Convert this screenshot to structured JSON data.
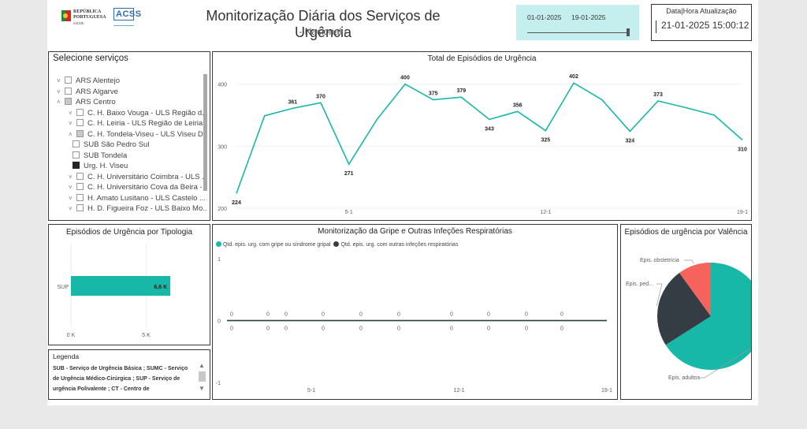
{
  "header": {
    "logo_republica_line1": "REPÚBLICA",
    "logo_republica_line2": "PORTUGUESA",
    "logo_republica_sub": "SAÚDE",
    "logo_acss": "ACSS",
    "title": "Monitorização Diária dos Serviços de Urgência",
    "subtitle": "- Nacional -",
    "date_start": "01-01-2025",
    "date_end": "19-01-2025",
    "update_label": "Data|Hora Atualização",
    "update_value": "21-01-2025 15:00:12"
  },
  "slicer": {
    "title": "Selecione serviços",
    "items": [
      {
        "label": "ARS Alentejo",
        "level": 0,
        "chevron": "down",
        "state": "unchecked"
      },
      {
        "label": "ARS Algarve",
        "level": 0,
        "chevron": "down",
        "state": "unchecked"
      },
      {
        "label": "ARS Centro",
        "level": 0,
        "chevron": "up",
        "state": "partial"
      },
      {
        "label": "C. H. Baixo Vouga - ULS Região d...",
        "level": 1,
        "chevron": "down",
        "state": "unchecked"
      },
      {
        "label": "C. H. Leiria - ULS Região de Leiria,...",
        "level": 1,
        "chevron": "down",
        "state": "unchecked"
      },
      {
        "label": "C. H. Tondela-Viseu - ULS Viseu D...",
        "level": 1,
        "chevron": "up",
        "state": "partial"
      },
      {
        "label": "SUB São Pedro Sul",
        "level": 2,
        "chevron": "",
        "state": "unchecked"
      },
      {
        "label": "SUB Tondela",
        "level": 2,
        "chevron": "",
        "state": "unchecked"
      },
      {
        "label": "Urg. H. Viseu",
        "level": 2,
        "chevron": "",
        "state": "checked"
      },
      {
        "label": "C. H. Universitário Coimbra - ULS ...",
        "level": 1,
        "chevron": "down",
        "state": "unchecked"
      },
      {
        "label": "C. H. Universitário Cova da Beira - ...",
        "level": 1,
        "chevron": "down",
        "state": "unchecked"
      },
      {
        "label": "H. Amato Lusitano - ULS Castelo ...",
        "level": 1,
        "chevron": "down",
        "state": "unchecked"
      },
      {
        "label": "H. D. Figueira Foz - ULS Baixo Mo...",
        "level": 1,
        "chevron": "down",
        "state": "unchecked"
      }
    ]
  },
  "legend_box": {
    "title": "Legenda",
    "text": "SUB - Serviço de Urgência Básica ; SUMC - Serviço de Urgência Médico-Cirúrgica ; SUP - Serviço de urgência Polivalente ; CT - Centro de"
  },
  "colors": {
    "teal": "#17b8a8",
    "dark": "#333d43",
    "coral": "#f6635c"
  },
  "chart_data": [
    {
      "type": "line",
      "title": "Total de Episódios de Urgência",
      "x": [
        "01-01",
        "02-01",
        "03-01",
        "04-01",
        "05-01",
        "06-01",
        "07-01",
        "08-01",
        "09-01",
        "10-01",
        "11-01",
        "12-01",
        "13-01",
        "14-01",
        "15-01",
        "16-01",
        "17-01",
        "18-01",
        "19-01"
      ],
      "values": [
        224,
        349,
        361,
        370,
        271,
        343,
        400,
        375,
        379,
        343,
        356,
        325,
        402,
        375,
        324,
        373,
        362,
        350,
        310
      ],
      "labels": [
        "224",
        "",
        "361",
        "370",
        "271",
        "",
        "400",
        "375",
        "379",
        "343",
        "356",
        "325",
        "402",
        "",
        "324",
        "373",
        "",
        "",
        "310"
      ],
      "xticks": [
        "5-1",
        "12-1",
        "19-1"
      ],
      "yticks": [
        "200",
        "300",
        "400"
      ],
      "ylim": [
        200,
        420
      ],
      "color": "#17b8a8"
    },
    {
      "type": "bar",
      "title": "Episódios de Urgência por Tipologia",
      "categories": [
        "SUP"
      ],
      "values": [
        6600
      ],
      "data_labels": [
        "6,6 K"
      ],
      "xticks": [
        "0 K",
        "5 K"
      ],
      "xlim": [
        0,
        9000
      ],
      "color": "#17b8a8"
    },
    {
      "type": "line",
      "title": "Monitorização da Gripe e Outras Infeções Respiratórias",
      "series": [
        {
          "name": "Qtd. epis. urg. com gripe ou síndrome gripal",
          "values": [
            0,
            0,
            0,
            0,
            0,
            0,
            0,
            0,
            0,
            0,
            0,
            0,
            0,
            0,
            0,
            0,
            0,
            0,
            0
          ],
          "color": "#17b8a8"
        },
        {
          "name": "Qtd. epis. urg. com outras infeções respiratórias",
          "values": [
            0,
            0,
            0,
            0,
            0,
            0,
            0,
            0,
            0,
            0,
            0,
            0,
            0,
            0,
            0,
            0,
            0,
            0,
            0
          ],
          "color": "#333d43"
        }
      ],
      "data_labels": [
        "0",
        "0",
        "0",
        "0",
        "0",
        "0",
        "0",
        "0",
        "0",
        "0"
      ],
      "xticks": [
        "5-1",
        "12-1",
        "19-1"
      ],
      "yticks": [
        "1",
        "0",
        "-1"
      ],
      "ylim": [
        -1,
        1
      ]
    },
    {
      "type": "pie",
      "title": "Episódios de urgência por Valência",
      "slices": [
        {
          "label": "Epis. adultos",
          "value": 66,
          "color": "#17b8a8"
        },
        {
          "label": "Epis. ped...",
          "value": 24,
          "color": "#333d43"
        },
        {
          "label": "Epis. obstetrícia",
          "value": 10,
          "color": "#f6635c"
        }
      ]
    }
  ]
}
